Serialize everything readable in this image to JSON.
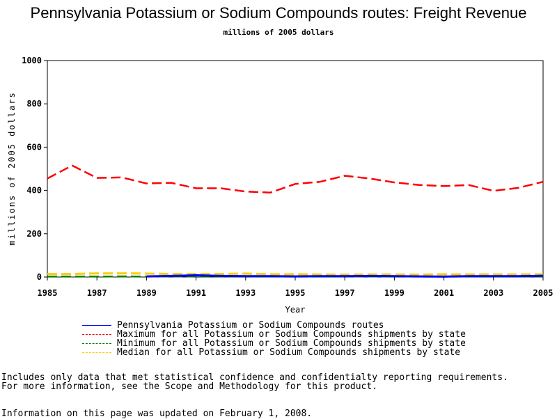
{
  "chart_data": {
    "type": "line",
    "title": "Pennsylvania Potassium or Sodium Compounds routes: Freight Revenue",
    "subtitle": "millions of 2005 dollars",
    "xlabel": "Year",
    "ylabel": "millions of 2005 dollars",
    "x": [
      1985,
      1986,
      1987,
      1988,
      1989,
      1990,
      1991,
      1992,
      1993,
      1994,
      1995,
      1996,
      1997,
      1998,
      1999,
      2000,
      2001,
      2002,
      2003,
      2004,
      2005
    ],
    "xlim": [
      1985,
      2005
    ],
    "ylim": [
      0,
      1000
    ],
    "xticks": [
      "1985",
      "1987",
      "1989",
      "1991",
      "1993",
      "1995",
      "1997",
      "1999",
      "2001",
      "2003",
      "2005"
    ],
    "yticks": [
      "0",
      "200",
      "400",
      "600",
      "800",
      "1000"
    ],
    "grid": false,
    "legend_position": "bottom",
    "series": [
      {
        "name": "Pennsylvania Potassium or Sodium Compounds routes",
        "color": "#0000ff",
        "style": "solid",
        "x": [
          1989,
          1990,
          1991,
          1992,
          1993,
          1994,
          1995,
          1996,
          1997,
          1998,
          1999,
          2000,
          2001,
          2002,
          2003,
          2004,
          2005
        ],
        "values": [
          3,
          5,
          8,
          5,
          4,
          4,
          3,
          4,
          4,
          5,
          4,
          3,
          2,
          4,
          4,
          4,
          6
        ]
      },
      {
        "name": "Maximum for all Potassium or Sodium Compounds shipments by state",
        "color": "#ff0000",
        "style": "dashed",
        "values": [
          455,
          515,
          458,
          460,
          432,
          435,
          410,
          410,
          395,
          390,
          430,
          440,
          468,
          455,
          437,
          425,
          420,
          425,
          398,
          412,
          440
        ]
      },
      {
        "name": "Minimum for all Potassium or Sodium Compounds shipments by state",
        "color": "#008000",
        "style": "dashed",
        "values": [
          2,
          2,
          2,
          3,
          2,
          3,
          2,
          2,
          2,
          2,
          2,
          2,
          2,
          3,
          2,
          2,
          2,
          2,
          2,
          2,
          2
        ]
      },
      {
        "name": "Median for all Potassium or Sodium Compounds shipments by state",
        "color": "#ffcc00",
        "style": "dashed",
        "values": [
          14,
          14,
          17,
          17,
          16,
          14,
          14,
          14,
          16,
          13,
          13,
          12,
          11,
          12,
          12,
          11,
          13,
          12,
          12,
          12,
          13
        ]
      }
    ]
  },
  "notes": [
    "Includes only data that met statistical confidence and confidentialty reporting requirements.",
    "For more information, see the Scope and Methodology for this product."
  ],
  "updated": "Information on this page was updated on February 1, 2008."
}
